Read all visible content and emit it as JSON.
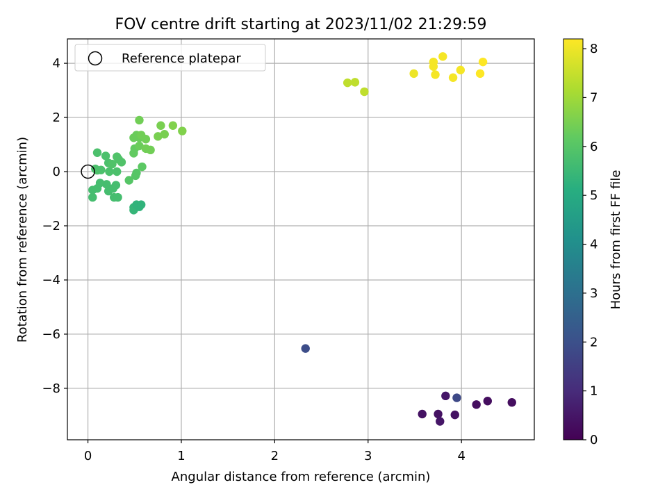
{
  "chart_data": {
    "type": "scatter",
    "title": "FOV centre drift starting at 2023/11/02 21:29:59",
    "xlabel": "Angular distance from reference (arcmin)",
    "ylabel": "Rotation from reference (arcmin)",
    "xlim": [
      -0.22,
      4.78
    ],
    "ylim": [
      -9.9,
      4.9
    ],
    "xticks": [
      0,
      1,
      2,
      3,
      4
    ],
    "xtick_labels": [
      "0",
      "1",
      "2",
      "3",
      "4"
    ],
    "yticks": [
      -8,
      -6,
      -4,
      -2,
      0,
      2,
      4
    ],
    "ytick_labels": [
      "−8",
      "−6",
      "−4",
      "−2",
      "0",
      "2",
      "4"
    ],
    "grid": true,
    "legend": {
      "location": "top-left",
      "entries": [
        {
          "label": "Reference platepar",
          "marker": "open-circle"
        }
      ]
    },
    "reference_point": {
      "x": 0,
      "y": 0
    },
    "colorbar": {
      "label": "Hours from first FF file",
      "colormap": "viridis",
      "range": [
        0,
        8.2
      ],
      "ticks": [
        0,
        1,
        2,
        3,
        4,
        5,
        6,
        7,
        8
      ],
      "tick_labels": [
        "0",
        "1",
        "2",
        "3",
        "4",
        "5",
        "6",
        "7",
        "8"
      ]
    },
    "points": [
      {
        "x": 3.58,
        "y": -8.95,
        "hours": 0.4
      },
      {
        "x": 3.75,
        "y": -8.95,
        "hours": 0.4
      },
      {
        "x": 3.77,
        "y": -9.22,
        "hours": 0.5
      },
      {
        "x": 3.83,
        "y": -8.28,
        "hours": 0.5
      },
      {
        "x": 3.93,
        "y": -8.98,
        "hours": 0.4
      },
      {
        "x": 4.16,
        "y": -8.6,
        "hours": 0.3
      },
      {
        "x": 4.28,
        "y": -8.47,
        "hours": 0.3
      },
      {
        "x": 4.54,
        "y": -8.52,
        "hours": 0.3
      },
      {
        "x": 3.95,
        "y": -8.35,
        "hours": 1.8
      },
      {
        "x": 2.33,
        "y": -6.53,
        "hours": 1.9
      },
      {
        "x": 0.49,
        "y": -1.42,
        "hours": 5.4
      },
      {
        "x": 0.49,
        "y": -1.32,
        "hours": 5.4
      },
      {
        "x": 0.52,
        "y": -1.22,
        "hours": 5.3
      },
      {
        "x": 0.55,
        "y": -1.3,
        "hours": 5.3
      },
      {
        "x": 0.57,
        "y": -1.22,
        "hours": 5.3
      },
      {
        "x": 0.05,
        "y": -0.95,
        "hours": 5.7
      },
      {
        "x": 0.05,
        "y": -0.68,
        "hours": 5.7
      },
      {
        "x": 0.1,
        "y": -0.62,
        "hours": 5.7
      },
      {
        "x": 0.13,
        "y": -0.42,
        "hours": 5.7
      },
      {
        "x": 0.2,
        "y": -0.47,
        "hours": 5.7
      },
      {
        "x": 0.22,
        "y": -0.72,
        "hours": 5.7
      },
      {
        "x": 0.27,
        "y": -0.62,
        "hours": 5.7
      },
      {
        "x": 0.28,
        "y": -0.95,
        "hours": 5.7
      },
      {
        "x": 0.32,
        "y": -0.95,
        "hours": 5.7
      },
      {
        "x": 0.3,
        "y": -0.5,
        "hours": 5.7
      },
      {
        "x": 0.08,
        "y": 0.1,
        "hours": 5.8
      },
      {
        "x": 0.1,
        "y": 0.05,
        "hours": 5.8
      },
      {
        "x": 0.14,
        "y": 0.06,
        "hours": 5.8
      },
      {
        "x": 0.1,
        "y": 0.7,
        "hours": 5.8
      },
      {
        "x": 0.19,
        "y": 0.58,
        "hours": 5.8
      },
      {
        "x": 0.22,
        "y": 0.32,
        "hours": 5.8
      },
      {
        "x": 0.23,
        "y": 0.0,
        "hours": 5.8
      },
      {
        "x": 0.26,
        "y": 0.28,
        "hours": 5.9
      },
      {
        "x": 0.31,
        "y": 0.0,
        "hours": 5.8
      },
      {
        "x": 0.31,
        "y": 0.55,
        "hours": 5.9
      },
      {
        "x": 0.33,
        "y": 0.45,
        "hours": 5.9
      },
      {
        "x": 0.36,
        "y": 0.35,
        "hours": 5.9
      },
      {
        "x": 0.44,
        "y": -0.32,
        "hours": 6.0
      },
      {
        "x": 0.51,
        "y": -0.15,
        "hours": 6.0
      },
      {
        "x": 0.52,
        "y": -0.05,
        "hours": 6.0
      },
      {
        "x": 0.58,
        "y": 0.18,
        "hours": 6.1
      },
      {
        "x": 0.49,
        "y": 0.68,
        "hours": 6.2
      },
      {
        "x": 0.5,
        "y": 0.85,
        "hours": 6.2
      },
      {
        "x": 0.49,
        "y": 1.25,
        "hours": 6.3
      },
      {
        "x": 0.52,
        "y": 1.35,
        "hours": 6.3
      },
      {
        "x": 0.55,
        "y": 1.25,
        "hours": 6.3
      },
      {
        "x": 0.55,
        "y": 0.95,
        "hours": 6.3
      },
      {
        "x": 0.55,
        "y": 1.9,
        "hours": 6.4
      },
      {
        "x": 0.57,
        "y": 1.35,
        "hours": 6.4
      },
      {
        "x": 0.62,
        "y": 1.2,
        "hours": 6.4
      },
      {
        "x": 0.62,
        "y": 0.85,
        "hours": 6.4
      },
      {
        "x": 0.67,
        "y": 0.8,
        "hours": 6.4
      },
      {
        "x": 0.75,
        "y": 1.3,
        "hours": 6.5
      },
      {
        "x": 0.78,
        "y": 1.7,
        "hours": 6.5
      },
      {
        "x": 0.82,
        "y": 1.38,
        "hours": 6.5
      },
      {
        "x": 0.91,
        "y": 1.7,
        "hours": 6.6
      },
      {
        "x": 1.01,
        "y": 1.5,
        "hours": 6.6
      },
      {
        "x": 2.78,
        "y": 3.28,
        "hours": 7.4
      },
      {
        "x": 2.86,
        "y": 3.3,
        "hours": 7.4
      },
      {
        "x": 2.96,
        "y": 2.95,
        "hours": 7.4
      },
      {
        "x": 3.49,
        "y": 3.62,
        "hours": 8.0
      },
      {
        "x": 3.7,
        "y": 3.88,
        "hours": 8.1
      },
      {
        "x": 3.7,
        "y": 4.05,
        "hours": 8.1
      },
      {
        "x": 3.72,
        "y": 3.58,
        "hours": 8.1
      },
      {
        "x": 3.8,
        "y": 4.25,
        "hours": 8.1
      },
      {
        "x": 3.91,
        "y": 3.47,
        "hours": 8.1
      },
      {
        "x": 3.99,
        "y": 3.75,
        "hours": 8.1
      },
      {
        "x": 4.2,
        "y": 3.62,
        "hours": 8.2
      },
      {
        "x": 4.23,
        "y": 4.05,
        "hours": 8.2
      }
    ]
  }
}
